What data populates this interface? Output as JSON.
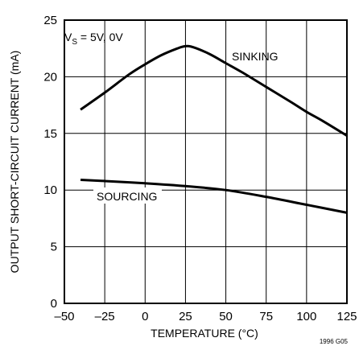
{
  "chart_data": {
    "type": "line",
    "title": "",
    "xlabel": "TEMPERATURE (°C)",
    "ylabel": "OUTPUT SHORT-CIRCUIT CURRENT (mA)",
    "xlim": [
      -50,
      125
    ],
    "ylim": [
      0,
      25
    ],
    "x_ticks": [
      -50,
      -25,
      0,
      25,
      50,
      75,
      100,
      125
    ],
    "x_tick_labels": [
      "–50",
      "–25",
      "0",
      "25",
      "50",
      "75",
      "100",
      "125"
    ],
    "y_ticks": [
      0,
      5,
      10,
      15,
      20,
      25
    ],
    "y_tick_labels": [
      "0",
      "5",
      "10",
      "15",
      "20",
      "25"
    ],
    "grid": true,
    "condition_label": {
      "main": "V",
      "sub": "S",
      "rest": " = 5V, 0V"
    },
    "figure_id": "1996 G05",
    "series": [
      {
        "name": "SINKING",
        "x": [
          -40,
          -25,
          -10,
          0,
          10,
          20,
          25,
          30,
          40,
          50,
          60,
          75,
          90,
          100,
          110,
          125
        ],
        "y": [
          17.1,
          18.6,
          20.2,
          21.1,
          21.9,
          22.5,
          22.7,
          22.6,
          22.0,
          21.2,
          20.4,
          19.1,
          17.8,
          16.9,
          16.1,
          14.8
        ]
      },
      {
        "name": "SOURCING",
        "x": [
          -40,
          -25,
          0,
          25,
          50,
          75,
          100,
          125
        ],
        "y": [
          10.9,
          10.8,
          10.6,
          10.35,
          10.0,
          9.4,
          8.7,
          8.0
        ]
      }
    ]
  }
}
